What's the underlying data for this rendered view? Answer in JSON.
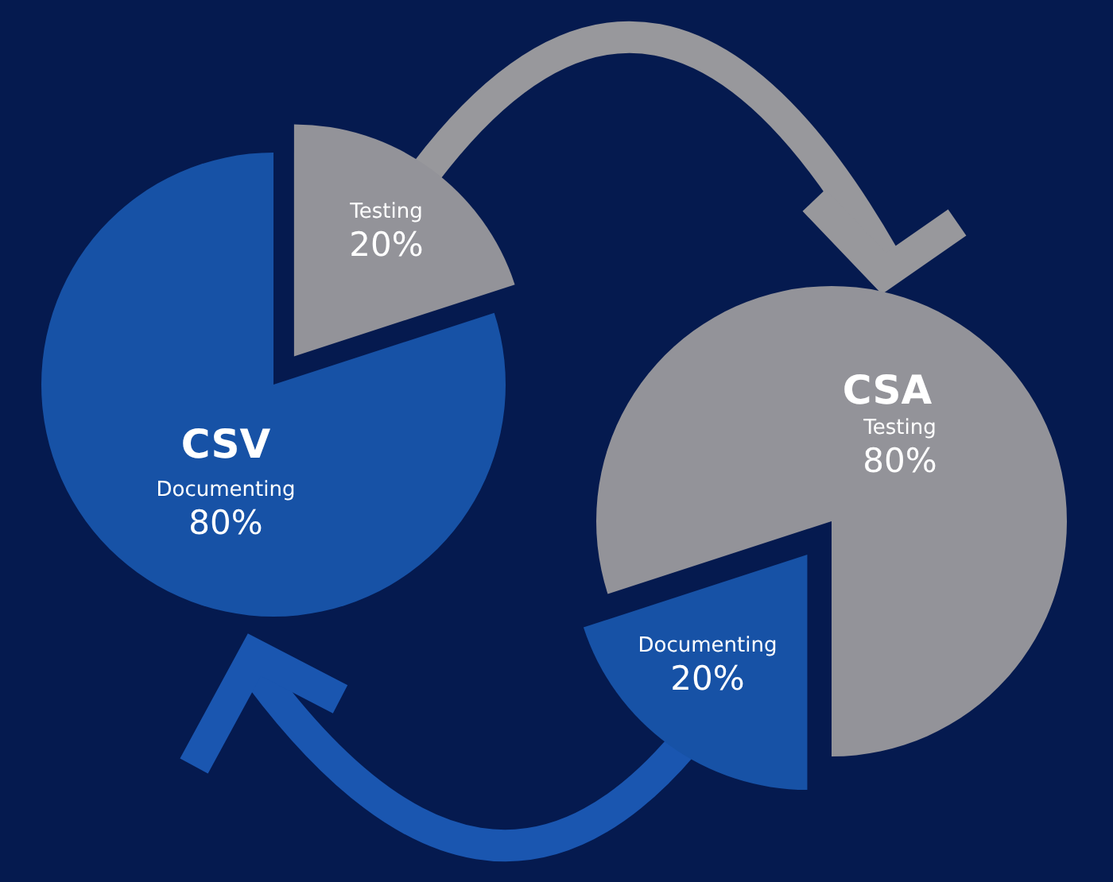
{
  "chart_data": [
    {
      "type": "pie",
      "title": "CSV",
      "categories": [
        "Testing",
        "Documenting"
      ],
      "values": [
        20,
        80
      ],
      "colors": [
        "#939399",
        "#1752a6"
      ],
      "value_labels": [
        "20%",
        "80%"
      ]
    },
    {
      "type": "pie",
      "title": "CSA",
      "categories": [
        "Documenting",
        "Testing"
      ],
      "values": [
        20,
        80
      ],
      "colors": [
        "#1752a6",
        "#939399"
      ],
      "value_labels": [
        "20%",
        "80%"
      ]
    }
  ]
}
